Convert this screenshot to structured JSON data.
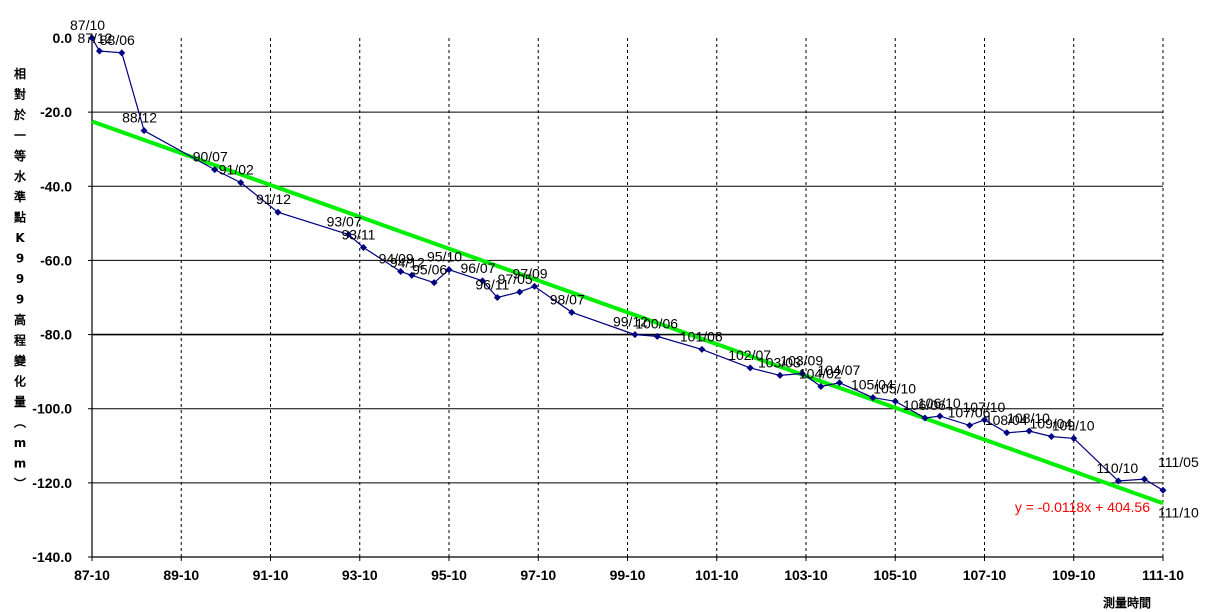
{
  "chart_data": {
    "type": "line",
    "ylabel": "相對於一等水準點K999高程變化量(mm)",
    "xlabel": "測量時間",
    "ylim": [
      -140,
      0
    ],
    "yticks": [
      0,
      -20,
      -40,
      -60,
      -80,
      -100,
      -120,
      -140
    ],
    "ytick_labels": [
      "0.0",
      "-20.0",
      "-40.0",
      "-60.0",
      "-80.0",
      "-100.0",
      "-120.0",
      "-140.0"
    ],
    "xticks": [
      "87-10",
      "89-10",
      "91-10",
      "93-10",
      "95-10",
      "97-10",
      "99-10",
      "101-10",
      "103-10",
      "105-10",
      "107-10",
      "109-10",
      "111-10"
    ],
    "grid": "vertical dashed at x ticks; horizontal solid at y ticks",
    "series": [
      {
        "color": "#000080",
        "points": [
          {
            "x": "87/10",
            "y": 0.0,
            "label": "87/10"
          },
          {
            "x": "87/12",
            "y": -3.5,
            "label": "87/12"
          },
          {
            "x": "88/06",
            "y": -4.0,
            "label": "88/06"
          },
          {
            "x": "88/12",
            "y": -25.0,
            "label": "88/12"
          },
          {
            "x": "90/07",
            "y": -35.5,
            "label": "90/07"
          },
          {
            "x": "91/02",
            "y": -39.0,
            "label": "91/02"
          },
          {
            "x": "91/12",
            "y": -47.0,
            "label": "91/12"
          },
          {
            "x": "93/07",
            "y": -53.0,
            "label": "93/07"
          },
          {
            "x": "93/11",
            "y": -56.5,
            "label": "93/11"
          },
          {
            "x": "94/09",
            "y": -63.0,
            "label": "94/09"
          },
          {
            "x": "94/12",
            "y": -64.0,
            "label": "94/12"
          },
          {
            "x": "95/06",
            "y": -66.0,
            "label": "95/06"
          },
          {
            "x": "95/10",
            "y": -62.5,
            "label": "95/10"
          },
          {
            "x": "96/07",
            "y": -65.5,
            "label": "96/07"
          },
          {
            "x": "96/11",
            "y": -70.0,
            "label": "96/11"
          },
          {
            "x": "97/05",
            "y": -68.5,
            "label": "97/05"
          },
          {
            "x": "97/09",
            "y": -67.0,
            "label": "97/09"
          },
          {
            "x": "98/07",
            "y": -74.0,
            "label": "98/07"
          },
          {
            "x": "99/12",
            "y": -80.0,
            "label": "99/12"
          },
          {
            "x": "100/06",
            "y": -80.5,
            "label": "100/06"
          },
          {
            "x": "101/06",
            "y": -84.0,
            "label": "101/06"
          },
          {
            "x": "102/07",
            "y": -89.0,
            "label": "102/07"
          },
          {
            "x": "103/03",
            "y": -91.0,
            "label": "103/03"
          },
          {
            "x": "103/09",
            "y": -90.5,
            "label": "103/09"
          },
          {
            "x": "104/02",
            "y": -94.0,
            "label": "104/02"
          },
          {
            "x": "104/07",
            "y": -93.0,
            "label": "104/07"
          },
          {
            "x": "105/04",
            "y": -97.0,
            "label": "105/04"
          },
          {
            "x": "105/10",
            "y": -98.0,
            "label": "105/10"
          },
          {
            "x": "106/06",
            "y": -102.5,
            "label": "106/06"
          },
          {
            "x": "106/10",
            "y": -102.0,
            "label": "106/10"
          },
          {
            "x": "107/06",
            "y": -104.5,
            "label": "107/06"
          },
          {
            "x": "107/10",
            "y": -103.0,
            "label": "107/10"
          },
          {
            "x": "108/04",
            "y": -106.5,
            "label": "108/04"
          },
          {
            "x": "108/10",
            "y": -106.0,
            "label": "108/10"
          },
          {
            "x": "109/04",
            "y": -107.5,
            "label": "109/04"
          },
          {
            "x": "109/10",
            "y": -108.0,
            "label": "109/10"
          },
          {
            "x": "110/10",
            "y": -119.5,
            "label": "110/10"
          },
          {
            "x": "111/05",
            "y": -119.0,
            "label": "111/05"
          },
          {
            "x": "111/10",
            "y": -122.0,
            "label": "111/10"
          }
        ]
      }
    ],
    "trendline": {
      "color": "#00ee00",
      "equation": "y = -0.0118x + 404.56",
      "equation_color": "#ff0000",
      "start": {
        "x": "87/10",
        "y": -22.5
      },
      "end": {
        "x": "111/10",
        "y": -125.5
      }
    }
  }
}
